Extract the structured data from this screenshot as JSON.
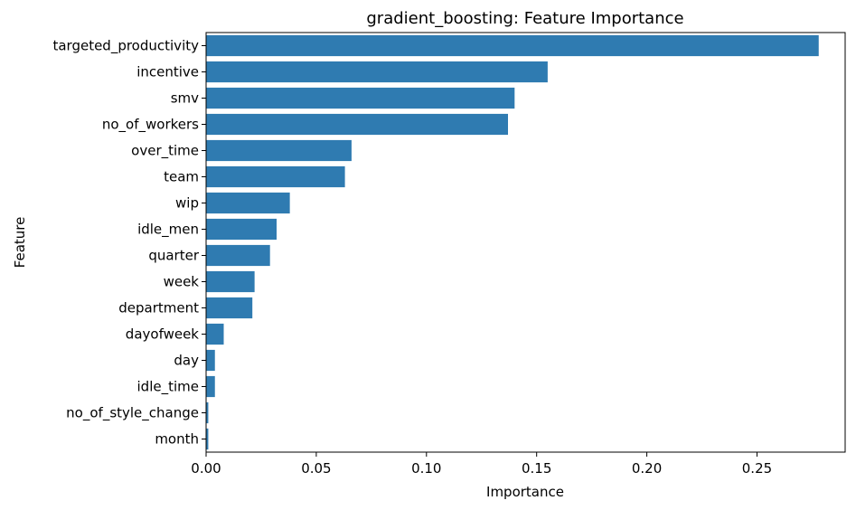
{
  "chart_data": {
    "type": "bar",
    "orientation": "horizontal",
    "title": "gradient_boosting: Feature Importance",
    "xlabel": "Importance",
    "ylabel": "Feature",
    "xlim": [
      0,
      0.29
    ],
    "xticks": [
      "0.00",
      "0.05",
      "0.10",
      "0.15",
      "0.20",
      "0.25"
    ],
    "bar_color": "#2f7bb1",
    "grid": false,
    "categories": [
      "targeted_productivity",
      "incentive",
      "smv",
      "no_of_workers",
      "over_time",
      "team",
      "wip",
      "idle_men",
      "quarter",
      "week",
      "department",
      "dayofweek",
      "day",
      "idle_time",
      "no_of_style_change",
      "month"
    ],
    "values": [
      0.278,
      0.155,
      0.14,
      0.137,
      0.066,
      0.063,
      0.038,
      0.032,
      0.029,
      0.022,
      0.021,
      0.008,
      0.004,
      0.004,
      0.001,
      0.001
    ]
  }
}
